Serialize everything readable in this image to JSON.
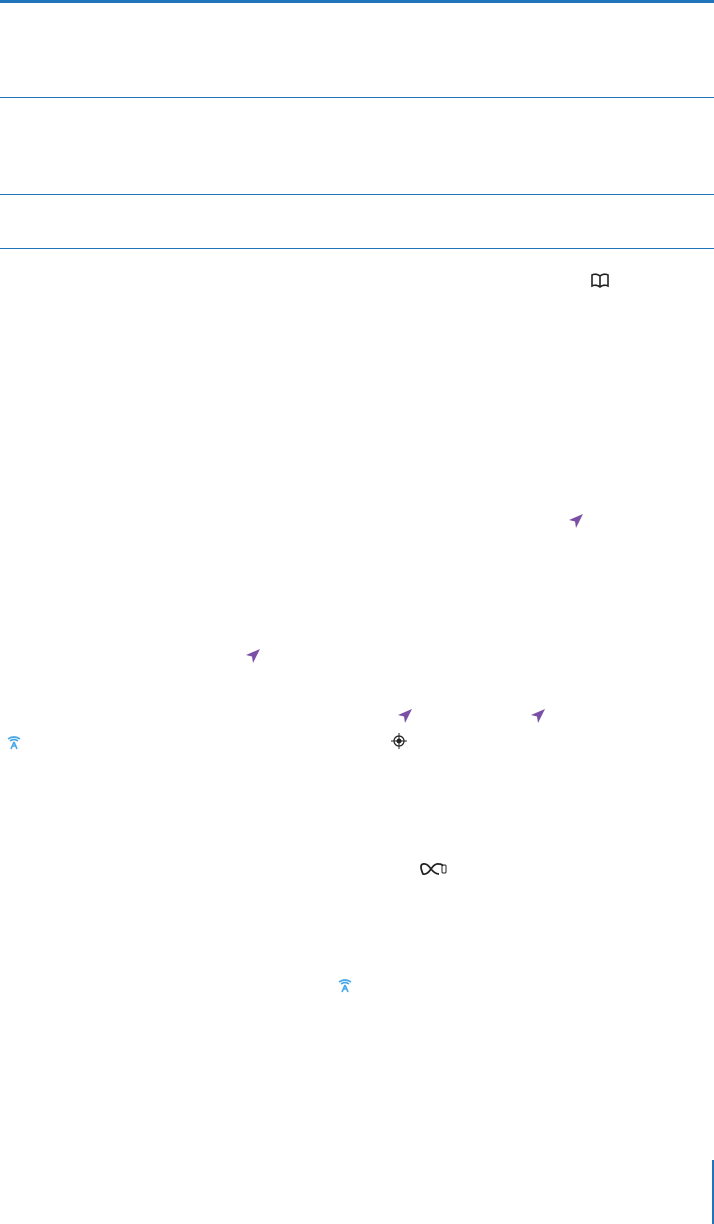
{
  "colors": {
    "rule": "#1f74bb",
    "location_arrow": "#7b4fa6",
    "tower": "#4aa8e8",
    "icon_dark": "#222222"
  },
  "icons": {
    "book": "book-icon",
    "location": "location-arrow-icon",
    "tower": "personal-hotspot-tower-icon",
    "compass": "compass-icon",
    "sync": "sync-infinity-icon"
  }
}
